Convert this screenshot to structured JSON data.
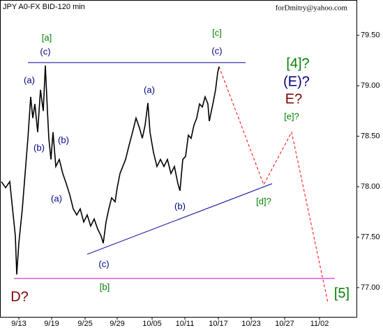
{
  "chart_data": {
    "type": "line",
    "title": "JPY A0-FX BID-120 min",
    "subtitle": "forDmitry@yahoo.com",
    "color": "#000000",
    "x": [
      1,
      4,
      7,
      9,
      11,
      12,
      13.5,
      16,
      18,
      20,
      22,
      23.5,
      25,
      27,
      29,
      31,
      32.5,
      34,
      35,
      36.5,
      38,
      40,
      42.5,
      45,
      47.5,
      50,
      52.5,
      55,
      57.5,
      60,
      62.5,
      65,
      67.5,
      70,
      72.5,
      74,
      76,
      78,
      80,
      82.5,
      84,
      86,
      88,
      90,
      92.5,
      95,
      97.5,
      100,
      102,
      104,
      106,
      107.5,
      110,
      112.5,
      115,
      117.5,
      120,
      122.5,
      125,
      127.5,
      129,
      131,
      133,
      135,
      137,
      139,
      141,
      143,
      145,
      147,
      149,
      150,
      151.5,
      153,
      154.5,
      156,
      157
    ],
    "values": [
      78.05,
      77.99,
      78.05,
      77.78,
      77.51,
      77.13,
      77.44,
      77.78,
      78.13,
      78.48,
      78.89,
      78.68,
      78.82,
      78.54,
      78.96,
      78.75,
      79.2,
      78.75,
      78.48,
      78.27,
      78.54,
      78.2,
      78.27,
      78.13,
      78.03,
      77.92,
      77.78,
      77.72,
      77.78,
      77.65,
      77.72,
      77.61,
      77.68,
      77.58,
      77.51,
      77.44,
      77.65,
      77.78,
      77.89,
      77.85,
      77.99,
      78.13,
      78.2,
      78.27,
      78.41,
      78.54,
      78.68,
      78.58,
      78.48,
      78.61,
      78.83,
      78.54,
      78.34,
      78.2,
      78.27,
      78.2,
      78.27,
      78.13,
      78.2,
      78.03,
      77.96,
      78.27,
      78.3,
      78.51,
      78.48,
      78.61,
      78.68,
      78.82,
      78.79,
      78.89,
      78.82,
      78.65,
      78.75,
      78.85,
      78.96,
      79.13,
      79.19
    ],
    "xlim": [
      0,
      255.5
    ],
    "ylim": [
      76.71,
      79.85
    ],
    "yticks": [
      {
        "value": 77,
        "label": "77.00"
      },
      {
        "value": 77.5,
        "label": "77.50"
      },
      {
        "value": 78,
        "label": "78.00"
      },
      {
        "value": 78.5,
        "label": "78.50"
      },
      {
        "value": 79,
        "label": "79.00"
      },
      {
        "value": 79.5,
        "label": "79.50"
      }
    ],
    "xticks": [
      {
        "value": 13.5,
        "label": "9/13"
      },
      {
        "value": 37,
        "label": "9/19"
      },
      {
        "value": 61,
        "label": "9/25"
      },
      {
        "value": 84,
        "label": "9/29"
      },
      {
        "value": 109,
        "label": "10/05"
      },
      {
        "value": 132.5,
        "label": "10/11"
      },
      {
        "value": 156.5,
        "label": "10/17"
      },
      {
        "value": 180,
        "label": "10/23"
      },
      {
        "value": 204,
        "label": "10/27"
      },
      {
        "value": 229,
        "label": "11/02"
      }
    ],
    "lines": [
      {
        "color": "#000099",
        "dashed": false,
        "x": [
          20,
          176
        ],
        "values": [
          79.23,
          79.23
        ]
      },
      {
        "color": "#000099",
        "dashed": false,
        "x": [
          62.5,
          195
        ],
        "values": [
          77.33,
          78.03
        ]
      },
      {
        "color": "#cc00cc",
        "dashed": false,
        "x": [
          10,
          240
        ],
        "values": [
          77.09,
          77.09
        ]
      },
      {
        "color": "#ff0000",
        "dashed": true,
        "x": [
          157,
          189,
          209,
          235
        ],
        "values": [
          79.19,
          78.02,
          78.54,
          76.85
        ]
      }
    ],
    "annotations": [
      {
        "text": "[a]",
        "color": "#008000"
      },
      {
        "text": "(c)",
        "color": "#000080"
      },
      {
        "text": "(a)",
        "color": "#000080"
      },
      {
        "text": "(b)",
        "color": "#000080"
      },
      {
        "text": "(b)",
        "color": "#000080"
      },
      {
        "text": "(a)",
        "color": "#000080"
      },
      {
        "text": "(c)",
        "color": "#000080"
      },
      {
        "text": "[b]",
        "color": "#008000"
      },
      {
        "text": "(a)",
        "color": "#000080"
      },
      {
        "text": "(b)",
        "color": "#000080"
      },
      {
        "text": "[c]",
        "color": "#008000"
      },
      {
        "text": "(c)",
        "color": "#000080"
      },
      {
        "text": "[d]?",
        "color": "#008000"
      },
      {
        "text": "[e]?",
        "color": "#008000"
      },
      {
        "text": "[4]?",
        "color": "#008000"
      },
      {
        "text": "(E)?",
        "color": "#000080"
      },
      {
        "text": "E?",
        "color": "#800000"
      },
      {
        "text": "D?",
        "color": "#800000"
      },
      {
        "text": "[5]",
        "color": "#008000"
      }
    ]
  }
}
